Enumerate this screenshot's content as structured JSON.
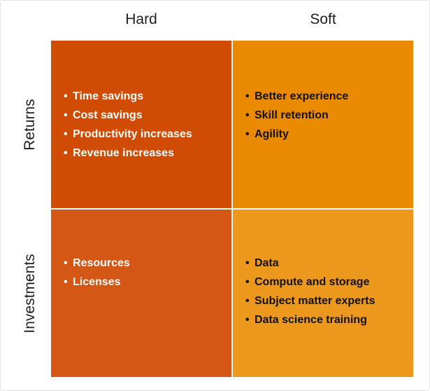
{
  "columns": {
    "hard": "Hard",
    "soft": "Soft"
  },
  "rows": {
    "returns": "Returns",
    "investments": "Investments"
  },
  "cells": {
    "hard_returns": {
      "color": "#d04b03",
      "items": [
        "Time savings",
        "Cost savings",
        "Productivity increases",
        "Revenue increases"
      ]
    },
    "soft_returns": {
      "color": "#ea8a00",
      "items": [
        "Better experience",
        "Skill retention",
        "Agility"
      ]
    },
    "hard_investments": {
      "color": "#d55715",
      "items": [
        "Resources",
        "Licenses"
      ]
    },
    "soft_investments": {
      "color": "#eb981c",
      "items": [
        "Data",
        "Compute and storage",
        "Subject matter experts",
        "Data science training"
      ]
    }
  }
}
